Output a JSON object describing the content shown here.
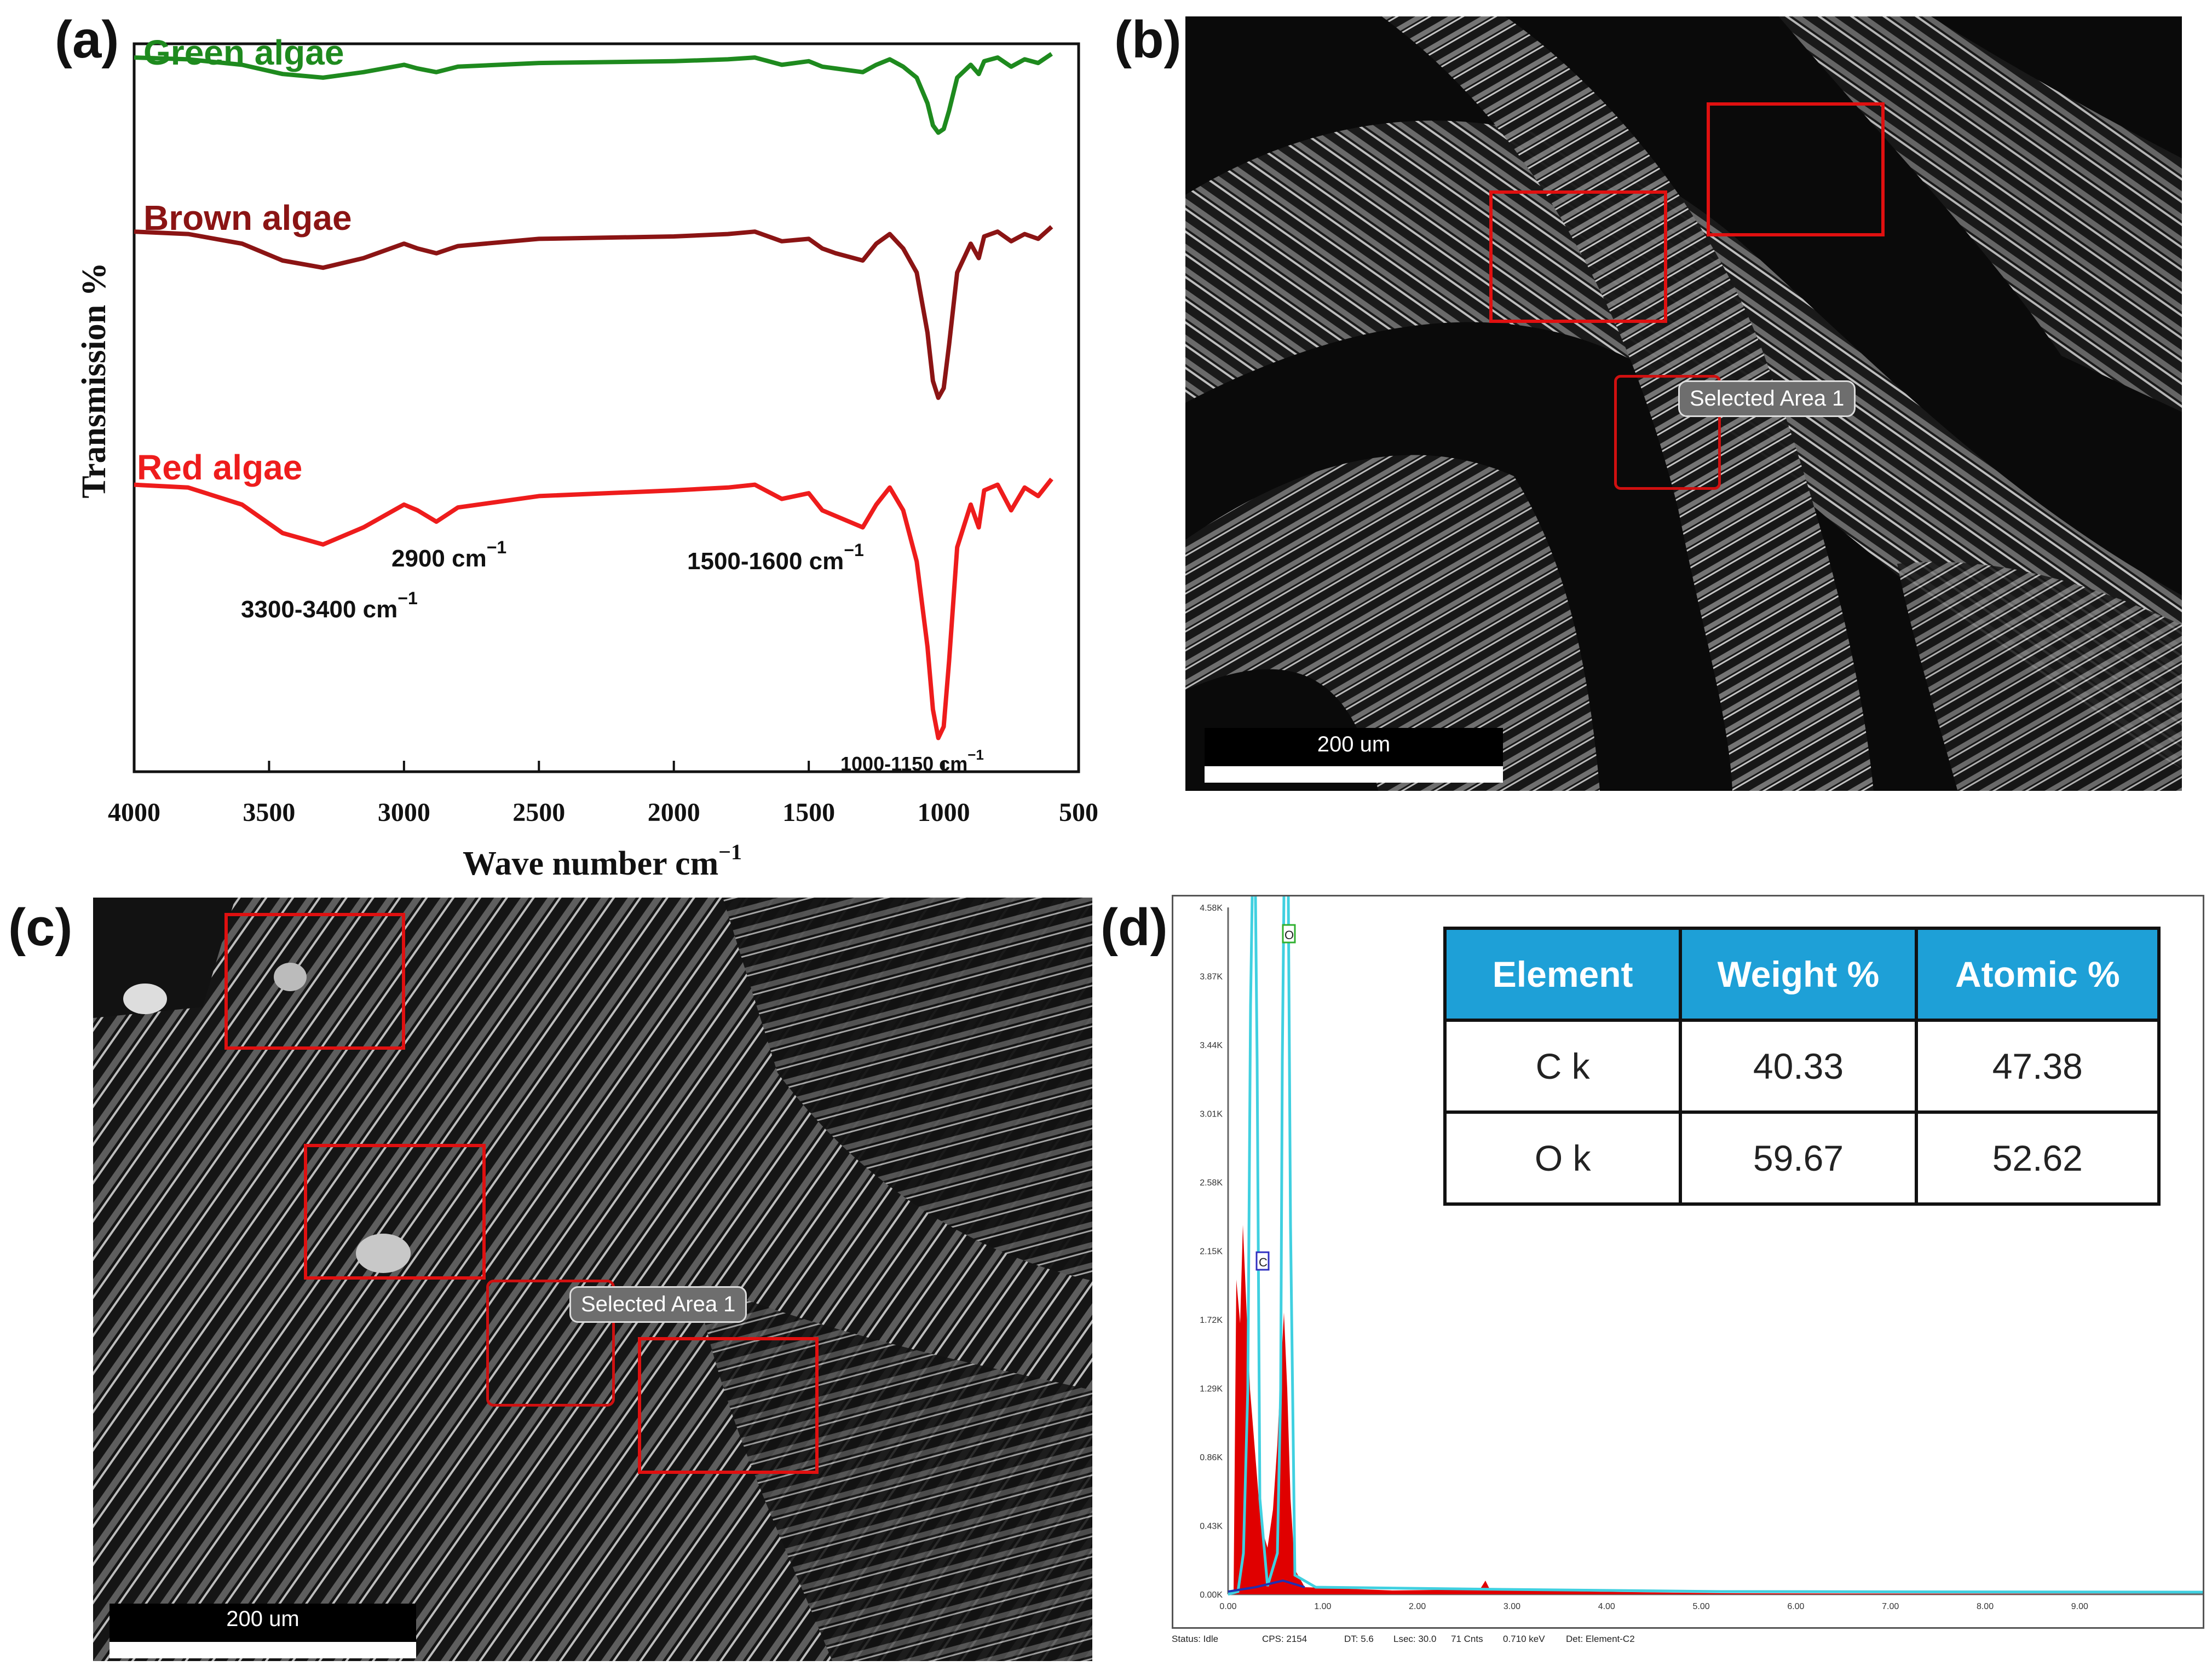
{
  "panels": {
    "a": "(a)",
    "b": "(b)",
    "c": "(c)",
    "d": "(d)"
  },
  "ftir": {
    "chart_data": {
      "type": "line",
      "xlabel": "Wave number cm",
      "xlabel_sup": "−1",
      "ylabel": "Transmission %",
      "xlim": [
        4000,
        500
      ],
      "x_ticks": [
        "4000",
        "3500",
        "3000",
        "2500",
        "2000",
        "1500",
        "1000",
        "500"
      ],
      "series": [
        {
          "name": "Green algae",
          "color": "#1e8a1e",
          "x": [
            4000,
            3800,
            3600,
            3450,
            3300,
            3150,
            3000,
            2950,
            2880,
            2800,
            2500,
            2000,
            1800,
            1700,
            1600,
            1500,
            1450,
            1400,
            1300,
            1250,
            1200,
            1150,
            1100,
            1060,
            1040,
            1020,
            1000,
            980,
            950,
            900,
            870,
            850,
            800,
            750,
            700,
            650,
            600
          ],
          "y": [
            0.97,
            0.96,
            0.93,
            0.88,
            0.86,
            0.89,
            0.93,
            0.91,
            0.89,
            0.92,
            0.94,
            0.95,
            0.96,
            0.97,
            0.93,
            0.95,
            0.92,
            0.91,
            0.89,
            0.93,
            0.96,
            0.92,
            0.86,
            0.72,
            0.6,
            0.56,
            0.58,
            0.68,
            0.86,
            0.93,
            0.88,
            0.95,
            0.97,
            0.92,
            0.96,
            0.94,
            0.99
          ]
        },
        {
          "name": "Brown algae",
          "color": "#8b1414",
          "x": [
            4000,
            3800,
            3600,
            3450,
            3300,
            3150,
            3000,
            2950,
            2880,
            2800,
            2500,
            2000,
            1800,
            1700,
            1600,
            1500,
            1450,
            1400,
            1300,
            1250,
            1200,
            1150,
            1100,
            1060,
            1040,
            1020,
            1000,
            980,
            950,
            900,
            870,
            850,
            800,
            750,
            700,
            650,
            600
          ],
          "y": [
            0.97,
            0.96,
            0.92,
            0.85,
            0.82,
            0.86,
            0.92,
            0.9,
            0.88,
            0.91,
            0.94,
            0.95,
            0.96,
            0.97,
            0.93,
            0.94,
            0.9,
            0.88,
            0.85,
            0.92,
            0.96,
            0.9,
            0.8,
            0.55,
            0.35,
            0.28,
            0.32,
            0.5,
            0.8,
            0.92,
            0.86,
            0.95,
            0.97,
            0.93,
            0.96,
            0.94,
            0.99
          ]
        },
        {
          "name": "Red algae",
          "color": "#ee1c1c",
          "x": [
            4000,
            3800,
            3600,
            3450,
            3300,
            3150,
            3000,
            2950,
            2880,
            2800,
            2500,
            2000,
            1800,
            1700,
            1600,
            1500,
            1450,
            1400,
            1300,
            1250,
            1200,
            1150,
            1100,
            1060,
            1040,
            1020,
            1000,
            980,
            950,
            900,
            870,
            850,
            800,
            750,
            700,
            650,
            600
          ],
          "y": [
            0.97,
            0.96,
            0.9,
            0.8,
            0.76,
            0.82,
            0.9,
            0.88,
            0.84,
            0.89,
            0.93,
            0.95,
            0.96,
            0.97,
            0.92,
            0.94,
            0.88,
            0.86,
            0.82,
            0.9,
            0.96,
            0.88,
            0.7,
            0.4,
            0.18,
            0.08,
            0.12,
            0.35,
            0.75,
            0.9,
            0.82,
            0.95,
            0.97,
            0.88,
            0.96,
            0.93,
            0.99
          ]
        }
      ],
      "annotations": [
        {
          "text": "3300-3400 cm",
          "sup": "−1"
        },
        {
          "text": "2900 cm",
          "sup": "−1"
        },
        {
          "text": "1500-1600 cm",
          "sup": "−1"
        },
        {
          "text": "1000-1150 cm",
          "sup": "−1"
        }
      ]
    }
  },
  "sem_b": {
    "scale_label": "200 um",
    "selected_label": "Selected Area 1"
  },
  "sem_c": {
    "scale_label": "200 um",
    "selected_label": "Selected Area 1"
  },
  "eds": {
    "table": {
      "headers": [
        "Element",
        "Weight %",
        "Atomic %"
      ],
      "rows": [
        [
          "C k",
          "40.33",
          "47.38"
        ],
        [
          "O k",
          "59.67",
          "52.62"
        ]
      ]
    },
    "chart_data": {
      "type": "line",
      "y_ticks": [
        "4.58K",
        "3.87K",
        "3.44K",
        "3.01K",
        "2.58K",
        "2.15K",
        "1.72K",
        "1.29K",
        "0.86K",
        "0.43K",
        "0.00K"
      ],
      "x_ticks": [
        "0.00",
        "1.00",
        "2.00",
        "3.00",
        "4.00",
        "5.00",
        "6.00",
        "7.00",
        "8.00",
        "9.00"
      ],
      "peak_labels": [
        "C",
        "O"
      ],
      "colors": {
        "fill": "#e00000",
        "line": "#40d0e0"
      }
    },
    "status": {
      "status": "Status: Idle",
      "cps": "CPS: 2154",
      "dt": "DT: 5.6",
      "lsec": "Lsec: 30.0",
      "cnts": "71 Cnts",
      "kev": "0.710 keV",
      "det": "Det: Element-C2"
    }
  }
}
